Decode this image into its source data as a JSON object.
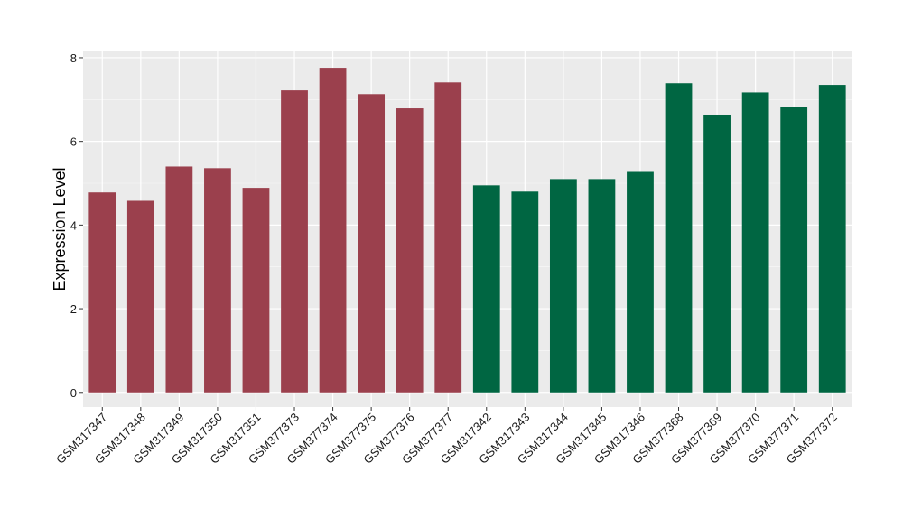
{
  "chart_data": {
    "type": "bar",
    "title": "",
    "xlabel": "",
    "ylabel": "Expression Level",
    "ylim": [
      -0.35,
      8.15
    ],
    "yticks": [
      0,
      2,
      4,
      6,
      8
    ],
    "grid": true,
    "legend": "none",
    "categories": [
      "GSM317347",
      "GSM317348",
      "GSM317349",
      "GSM317350",
      "GSM317351",
      "GSM377373",
      "GSM377374",
      "GSM377375",
      "GSM377376",
      "GSM377377",
      "GSM317342",
      "GSM317343",
      "GSM317344",
      "GSM317345",
      "GSM317346",
      "GSM377368",
      "GSM377369",
      "GSM377370",
      "GSM377371",
      "GSM377372"
    ],
    "values": [
      4.78,
      4.58,
      5.4,
      5.36,
      4.89,
      7.22,
      7.76,
      7.13,
      6.79,
      7.41,
      4.95,
      4.8,
      5.1,
      5.1,
      5.27,
      7.39,
      6.64,
      7.17,
      6.83,
      7.35
    ],
    "bar_colors": [
      "#9b404d",
      "#9b404d",
      "#9b404d",
      "#9b404d",
      "#9b404d",
      "#9b404d",
      "#9b404d",
      "#9b404d",
      "#9b404d",
      "#9b404d",
      "#006642",
      "#006642",
      "#006642",
      "#006642",
      "#006642",
      "#006642",
      "#006642",
      "#006642",
      "#006642",
      "#006642"
    ],
    "panel_background": "#ebebeb",
    "gridline_color": "#ffffff"
  }
}
